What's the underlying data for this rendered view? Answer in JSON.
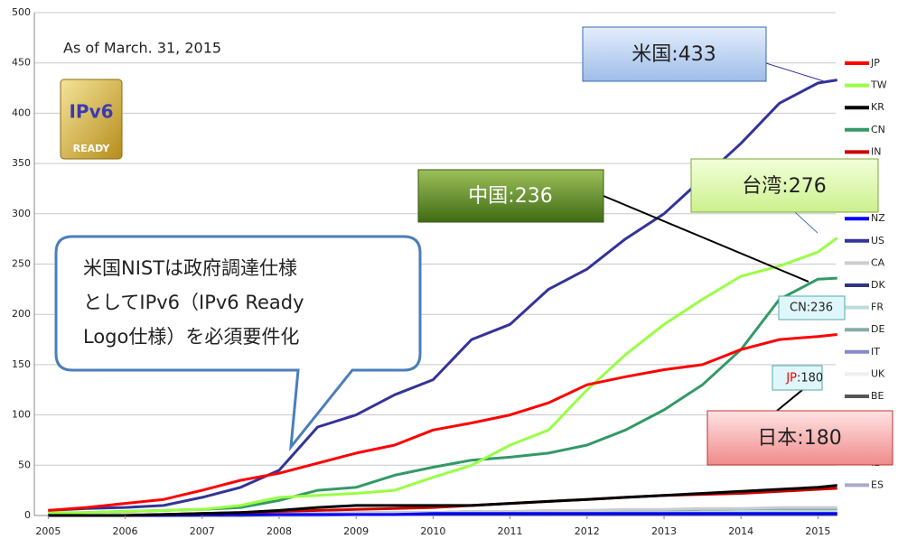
{
  "chart_data": {
    "type": "line",
    "subtitle": "As of March. 31, 2015",
    "logo": {
      "top": "IPv6",
      "bottom": "READY"
    },
    "bubble": [
      "米国NISTは政府調達仕様",
      "としてIPv6（IPv6 Ready",
      "Logo仕様）を必須要件化"
    ],
    "callouts": {
      "us": "米国:433",
      "tw": "台湾:276",
      "cn": "中国:236",
      "jp": "日本:180",
      "cn_small": "CN:236",
      "jp_small_code": "JP",
      "jp_small_value": ":180"
    },
    "x": [
      2005,
      2005.5,
      2006,
      2006.5,
      2007,
      2007.5,
      2008,
      2008.5,
      2009,
      2009.5,
      2010,
      2010.5,
      2011,
      2011.5,
      2012,
      2012.5,
      2013,
      2013.5,
      2014,
      2014.5,
      2015,
      2015.25
    ],
    "xlim": [
      2004.82,
      2015.23
    ],
    "xticks": [
      2005,
      2006,
      2007,
      2008,
      2009,
      2010,
      2011,
      2012,
      2013,
      2014,
      2015
    ],
    "ylim": [
      0,
      500
    ],
    "yticks": [
      0,
      50,
      100,
      150,
      200,
      250,
      300,
      350,
      400,
      450,
      500
    ],
    "grid": true,
    "series": [
      {
        "name": "JP",
        "color": "#ff0000",
        "values": [
          5,
          8,
          12,
          16,
          25,
          35,
          42,
          52,
          62,
          70,
          85,
          92,
          100,
          112,
          130,
          138,
          145,
          150,
          165,
          175,
          178,
          180
        ]
      },
      {
        "name": "TW",
        "color": "#99ff44",
        "values": [
          3,
          3,
          4,
          5,
          6,
          10,
          18,
          20,
          22,
          25,
          38,
          50,
          70,
          85,
          125,
          160,
          190,
          215,
          238,
          248,
          262,
          276
        ]
      },
      {
        "name": "KR",
        "color": "#000000",
        "values": [
          0,
          0,
          0,
          1,
          2,
          3,
          5,
          8,
          10,
          10,
          10,
          10,
          12,
          14,
          16,
          18,
          20,
          22,
          24,
          26,
          28,
          30
        ]
      },
      {
        "name": "CN",
        "color": "#339966",
        "values": [
          2,
          3,
          4,
          5,
          6,
          8,
          15,
          25,
          28,
          40,
          48,
          55,
          58,
          62,
          70,
          85,
          105,
          130,
          165,
          215,
          235,
          236
        ]
      },
      {
        "name": "IN",
        "color": "#cc0000",
        "values": [
          0,
          0,
          0,
          1,
          2,
          3,
          4,
          5,
          6,
          7,
          8,
          10,
          12,
          14,
          16,
          18,
          20,
          21,
          22,
          24,
          26,
          27
        ]
      },
      {
        "name": "NZ",
        "color": "#0000ff",
        "values": [
          0,
          0,
          0,
          0,
          1,
          1,
          1,
          1,
          1,
          1,
          2,
          2,
          2,
          2,
          2,
          2,
          2,
          2,
          2,
          2,
          2,
          2
        ]
      },
      {
        "name": "US",
        "color": "#333399",
        "values": [
          5,
          7,
          8,
          10,
          18,
          28,
          45,
          88,
          100,
          120,
          135,
          175,
          190,
          225,
          245,
          275,
          300,
          335,
          370,
          410,
          430,
          433
        ]
      },
      {
        "name": "CA",
        "color": "#cccccc",
        "values": [
          0,
          0,
          1,
          1,
          1,
          2,
          2,
          2,
          3,
          3,
          3,
          4,
          4,
          5,
          5,
          6,
          6,
          7,
          7,
          8,
          8,
          8
        ]
      },
      {
        "name": "DK",
        "color": "#333388",
        "values": [
          0,
          0,
          0,
          0,
          0,
          1,
          1,
          1,
          1,
          1,
          1,
          1,
          1,
          1,
          1,
          1,
          1,
          1,
          1,
          1,
          1,
          1
        ]
      },
      {
        "name": "FR",
        "color": "#bbdddd",
        "values": [
          0,
          0,
          0,
          1,
          1,
          1,
          1,
          2,
          2,
          2,
          2,
          2,
          3,
          3,
          3,
          3,
          3,
          3,
          4,
          4,
          4,
          4
        ]
      },
      {
        "name": "DE",
        "color": "#88aaaa",
        "values": [
          0,
          0,
          1,
          1,
          1,
          2,
          2,
          2,
          3,
          3,
          3,
          4,
          4,
          4,
          5,
          5,
          5,
          6,
          6,
          6,
          6,
          6
        ]
      },
      {
        "name": "IT",
        "color": "#8888cc",
        "values": [
          0,
          0,
          0,
          0,
          1,
          1,
          1,
          1,
          1,
          2,
          2,
          2,
          2,
          2,
          2,
          2,
          3,
          3,
          3,
          3,
          3,
          3
        ]
      },
      {
        "name": "UK",
        "color": "#eeeeee",
        "values": [
          0,
          0,
          0,
          0,
          0,
          1,
          1,
          1,
          1,
          1,
          1,
          1,
          1,
          2,
          2,
          2,
          2,
          2,
          2,
          2,
          2,
          2
        ]
      },
      {
        "name": "BE",
        "color": "#555555",
        "values": [
          0,
          0,
          0,
          0,
          0,
          0,
          1,
          1,
          1,
          1,
          1,
          1,
          1,
          1,
          1,
          1,
          1,
          1,
          1,
          1,
          1,
          1
        ]
      },
      {
        "name": "IL",
        "color": "#aaaaaa",
        "values": [
          0,
          0,
          0,
          0,
          0,
          0,
          0,
          1,
          1,
          1,
          1,
          1,
          1,
          1,
          1,
          2,
          2,
          2,
          2,
          2,
          2,
          2
        ]
      },
      {
        "name": "ES",
        "color": "#aaaacc",
        "values": [
          0,
          0,
          0,
          0,
          0,
          0,
          0,
          0,
          1,
          1,
          1,
          1,
          1,
          1,
          1,
          1,
          1,
          1,
          1,
          1,
          1,
          1
        ]
      }
    ]
  }
}
